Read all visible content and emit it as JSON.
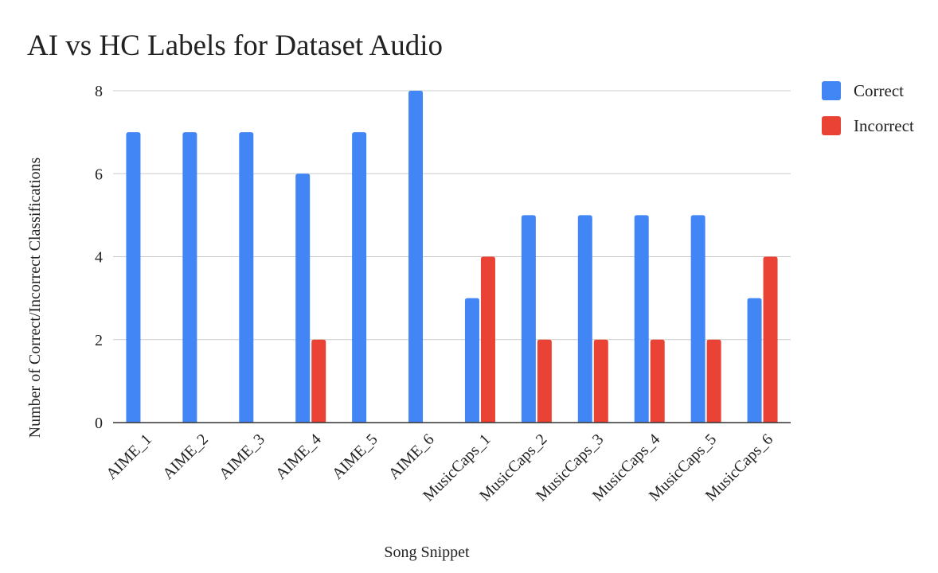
{
  "chart_data": {
    "type": "bar",
    "title": "AI vs HC Labels for Dataset Audio",
    "xlabel": "Song Snippet",
    "ylabel": "Number of Correct/Incorrect Classifications",
    "categories": [
      "AIME_1",
      "AIME_2",
      "AIME_3",
      "AIME_4",
      "AIME_5",
      "AIME_6",
      "MusicCaps_1",
      "MusicCaps_2",
      "MusicCaps_3",
      "MusicCaps_4",
      "MusicCaps_5",
      "MusicCaps_6"
    ],
    "series": [
      {
        "name": "Correct",
        "color": "#4285f4",
        "values": [
          7,
          7,
          7,
          6,
          7,
          8,
          3,
          5,
          5,
          5,
          5,
          3
        ]
      },
      {
        "name": "Incorrect",
        "color": "#ea4335",
        "values": [
          0,
          0,
          0,
          2,
          0,
          0,
          4,
          2,
          2,
          2,
          2,
          4
        ]
      }
    ],
    "ylim": [
      0,
      8
    ],
    "yticks": [
      0,
      2,
      4,
      6,
      8
    ],
    "grid": true,
    "legend": "right"
  }
}
